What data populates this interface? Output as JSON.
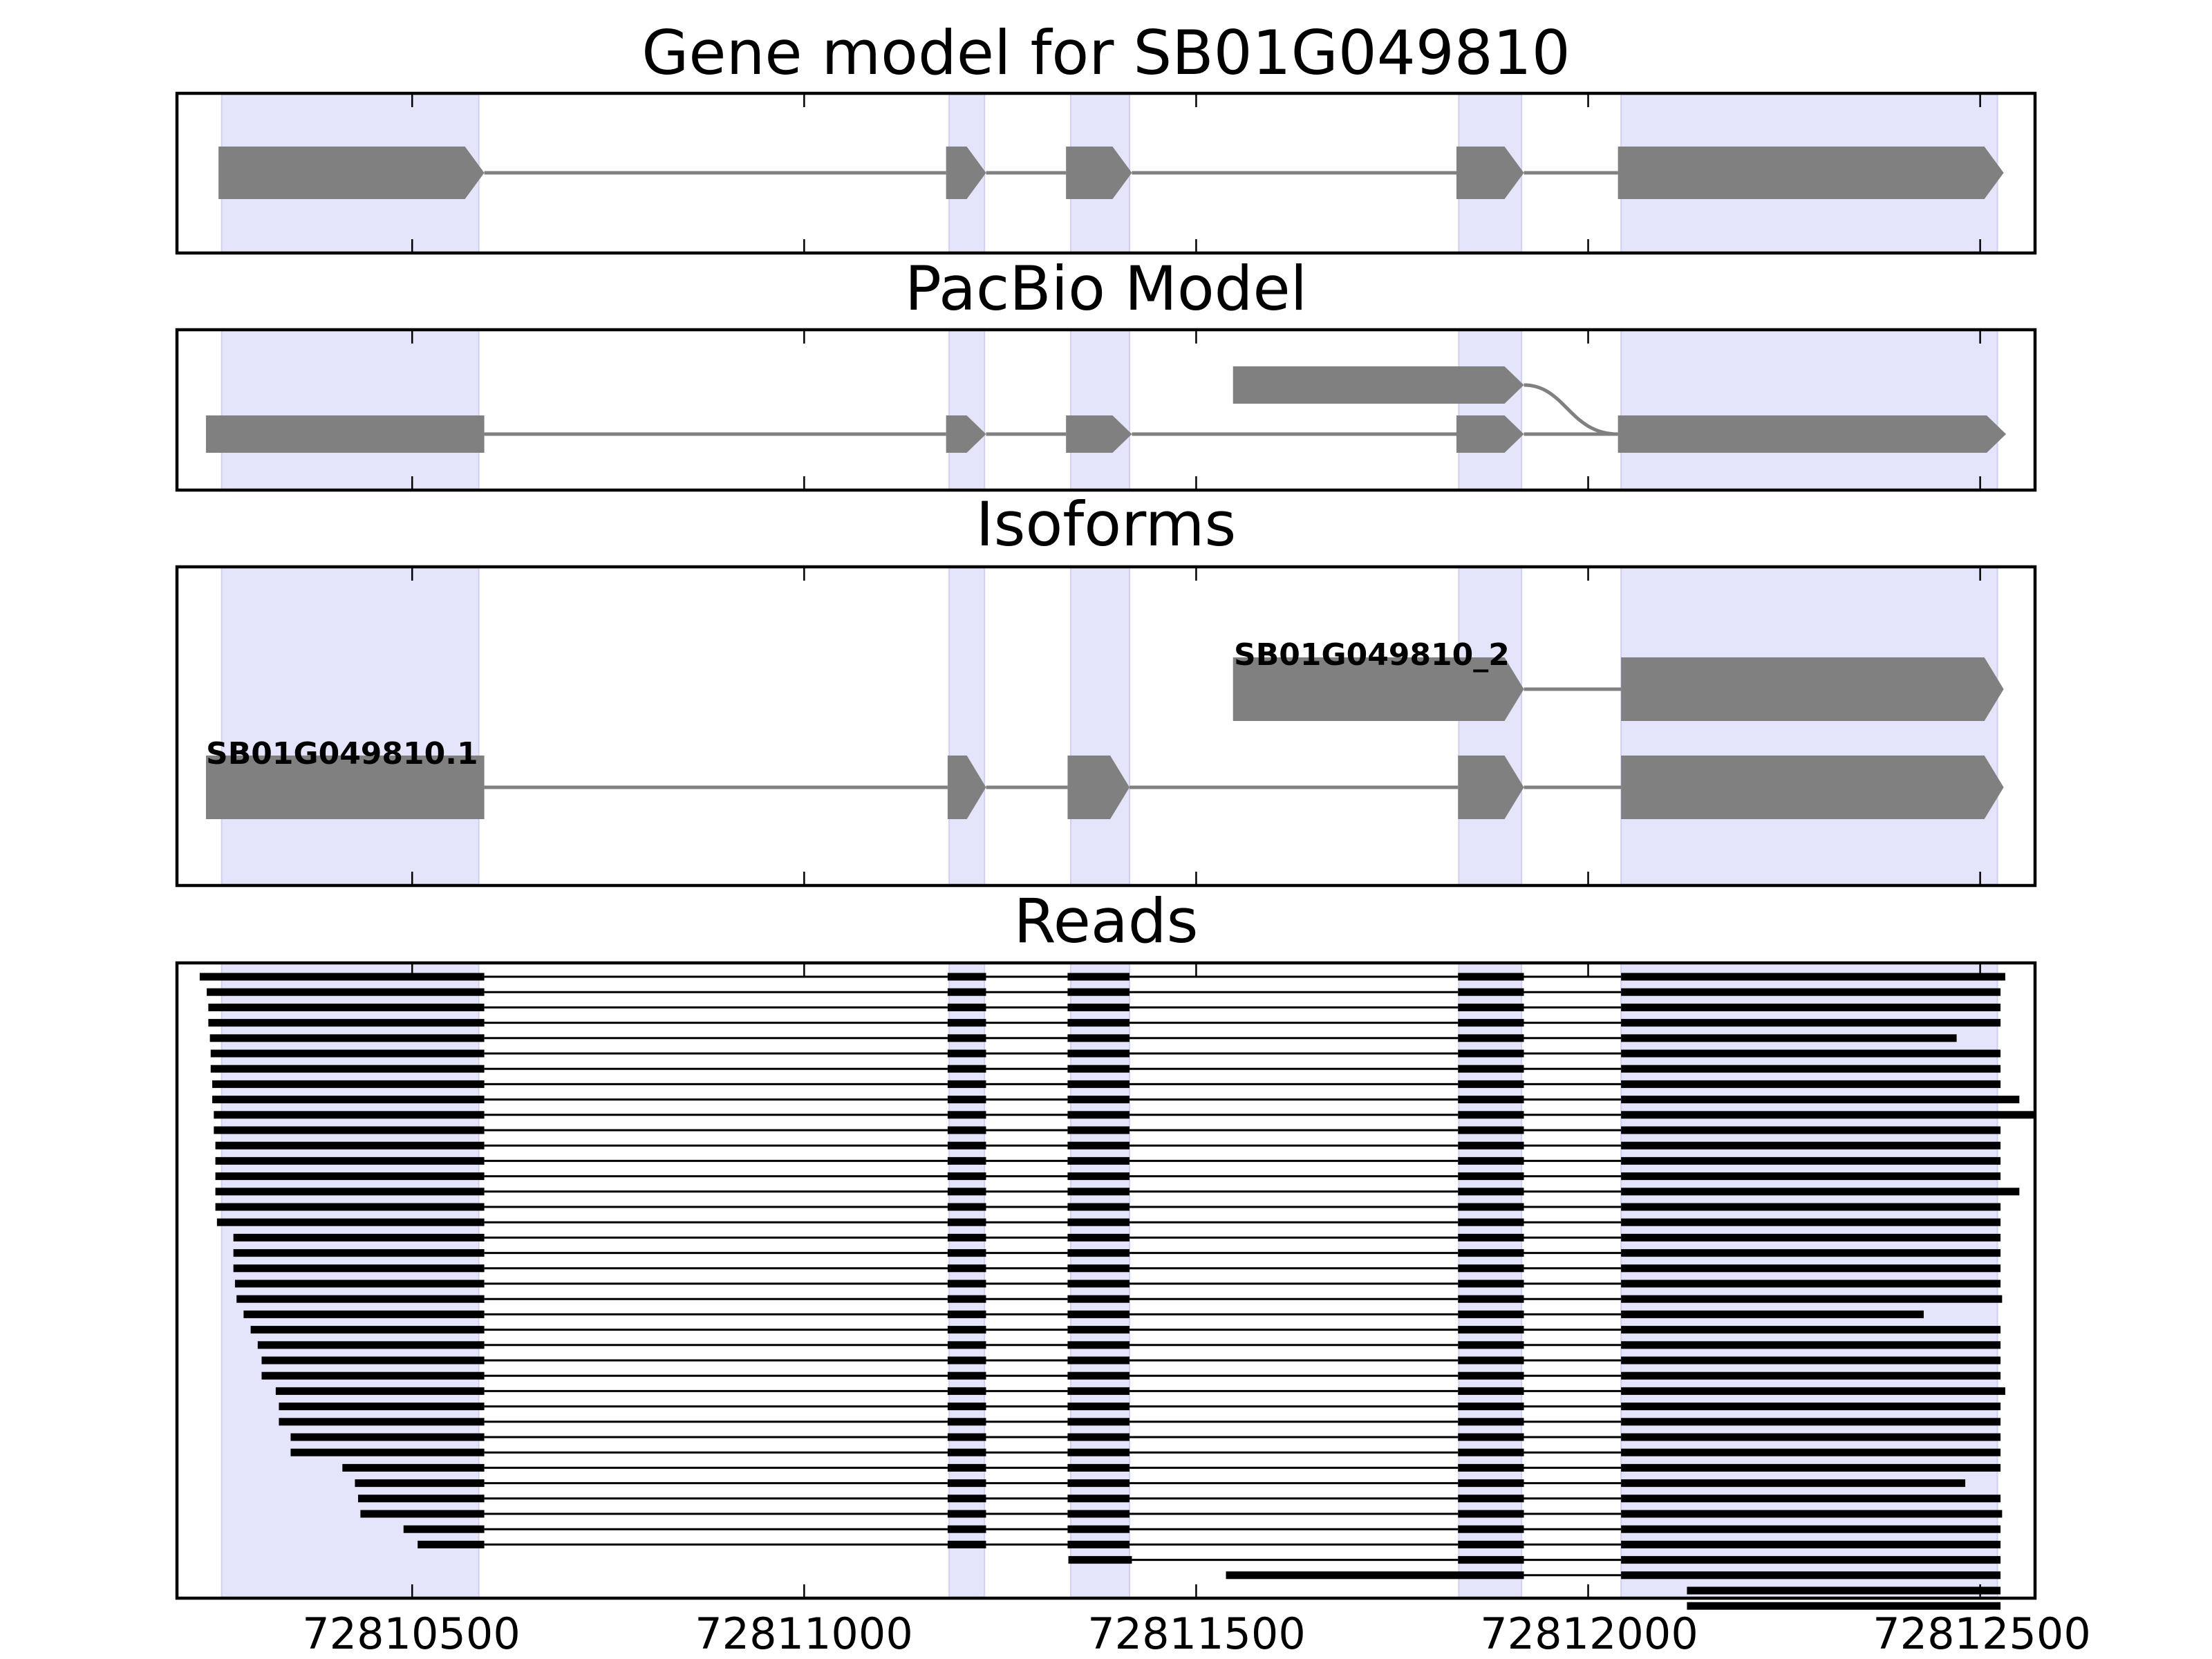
{
  "figure": {
    "panel_titles": [
      "Gene model for SB01G049810",
      "PacBio Model",
      "Isoforms",
      "Reads"
    ],
    "x_tick_labels": [
      "72810500",
      "72811000",
      "72811500",
      "72812000",
      "72812500"
    ]
  },
  "chart_data": {
    "type": "gene-structure",
    "xlim": [
      72810200,
      72812570
    ],
    "x_ticks": [
      72810500,
      72811000,
      72811500,
      72812000,
      72812500
    ],
    "grid": false,
    "colors": {
      "feature": "#808080",
      "intron": "#808080",
      "highlight": "#e4e4fa",
      "read": "#000000"
    },
    "strand": "+",
    "highlight_regions": [
      [
        72810257,
        72810585
      ],
      [
        72811185,
        72811230
      ],
      [
        72811340,
        72811415
      ],
      [
        72811835,
        72811915
      ],
      [
        72812042,
        72812522
      ]
    ],
    "panels": [
      {
        "title": "Gene model for SB01G049810",
        "transcripts": [
          {
            "exons": [
              [
                72810253,
                72810592
              ],
              [
                72811181,
                72811232
              ],
              [
                72811334,
                72811418
              ],
              [
                72811832,
                72811918
              ],
              [
                72812038,
                72812530
              ]
            ]
          }
        ]
      },
      {
        "title": "PacBio Model",
        "transcripts": [
          {
            "exons": [
              [
                72810237,
                72810592
              ],
              [
                72811181,
                72811232
              ],
              [
                72811334,
                72811418
              ],
              [
                72811832,
                72811918
              ],
              [
                72812038,
                72812533
              ]
            ]
          },
          {
            "exons": [
              [
                72811547,
                72811918
              ],
              [
                72812038,
                72812533
              ]
            ],
            "curved_junction": true
          }
        ]
      },
      {
        "title": "Isoforms",
        "transcripts": [
          {
            "label": "SB01G049810.1",
            "exons": [
              [
                72810237,
                72810592
              ],
              [
                72811183,
                72811232
              ],
              [
                72811336,
                72811415
              ],
              [
                72811834,
                72811918
              ],
              [
                72812042,
                72812530
              ]
            ]
          },
          {
            "label": "SB01G049810_2",
            "exons": [
              [
                72811547,
                72811918
              ],
              [
                72812042,
                72812530
              ]
            ]
          }
        ]
      },
      {
        "title": "Reads",
        "reads": [
          [
            72810229,
            72812532
          ],
          [
            72810238,
            72812526
          ],
          [
            72810240,
            72812526
          ],
          [
            72810240,
            72812526
          ],
          [
            72810242,
            72812470
          ],
          [
            72810243,
            72812526
          ],
          [
            72810243,
            72812526
          ],
          [
            72810245,
            72812526
          ],
          [
            72810245,
            72812550
          ],
          [
            72810247,
            72812570
          ],
          [
            72810247,
            72812526
          ],
          [
            72810249,
            72812526
          ],
          [
            72810249,
            72812526
          ],
          [
            72810249,
            72812526
          ],
          [
            72810249,
            72812550
          ],
          [
            72810249,
            72812526
          ],
          [
            72810251,
            72812526
          ],
          [
            72810272,
            72812526
          ],
          [
            72810272,
            72812526
          ],
          [
            72810272,
            72812526
          ],
          [
            72810274,
            72812526
          ],
          [
            72810276,
            72812528
          ],
          [
            72810285,
            72812428
          ],
          [
            72810294,
            72812526
          ],
          [
            72810303,
            72812526
          ],
          [
            72810308,
            72812526
          ],
          [
            72810308,
            72812526
          ],
          [
            72810326,
            72812532
          ],
          [
            72810330,
            72812526
          ],
          [
            72810330,
            72812526
          ],
          [
            72810345,
            72812526
          ],
          [
            72810345,
            72812526
          ],
          [
            72810411,
            72812526
          ],
          [
            72810427,
            72812481
          ],
          [
            72810431,
            72812526
          ],
          [
            72810434,
            72812528
          ],
          [
            72810489,
            72812526
          ],
          [
            72810507,
            72812526
          ],
          {
            "exons": [
              [
                72811337,
                72811418
              ],
              [
                72811834,
                72811918
              ],
              [
                72812042,
                72812526
              ]
            ]
          },
          {
            "exons": [
              [
                72811538,
                72811918
              ],
              [
                72812042,
                72812526
              ]
            ]
          },
          {
            "exons": [
              [
                72812126,
                72812526
              ]
            ]
          },
          {
            "exons": [
              [
                72812126,
                72812526
              ]
            ]
          }
        ]
      }
    ]
  }
}
